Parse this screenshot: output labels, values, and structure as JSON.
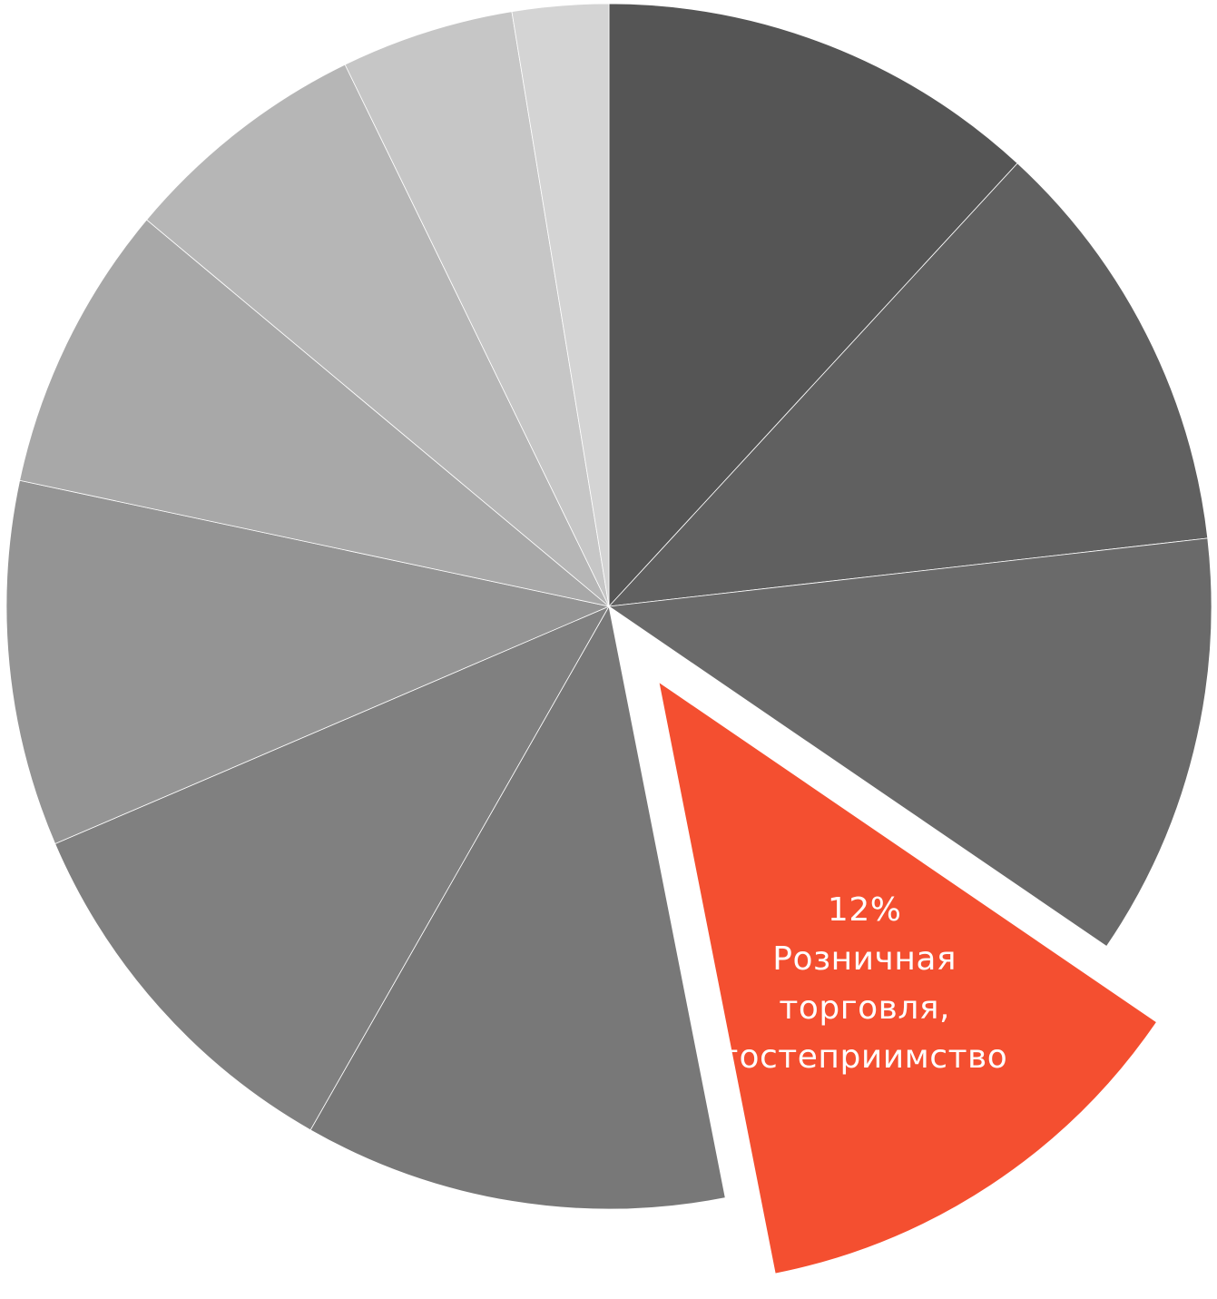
{
  "chart_data": {
    "type": "pie",
    "start": "top",
    "direction": "clockwise",
    "legend": "none",
    "slices": [
      {
        "value": 11.5,
        "color": "#555555"
      },
      {
        "value": 11.0,
        "color": "#606060"
      },
      {
        "value": 11.0,
        "color": "#6a6a6a"
      },
      {
        "value": 12.0,
        "color": "#f44f30",
        "exploded": true,
        "labels": [
          "12%",
          "Розничная",
          "торговля,",
          "гостеприимство"
        ]
      },
      {
        "value": 11.0,
        "color": "#787878"
      },
      {
        "value": 10.0,
        "color": "#808080"
      },
      {
        "value": 9.5,
        "color": "#949494"
      },
      {
        "value": 7.5,
        "color": "#a8a8a8"
      },
      {
        "value": 6.5,
        "color": "#b6b6b6"
      },
      {
        "value": 4.5,
        "color": "#c6c6c6"
      },
      {
        "value": 2.5,
        "color": "#d4d4d4"
      }
    ]
  }
}
